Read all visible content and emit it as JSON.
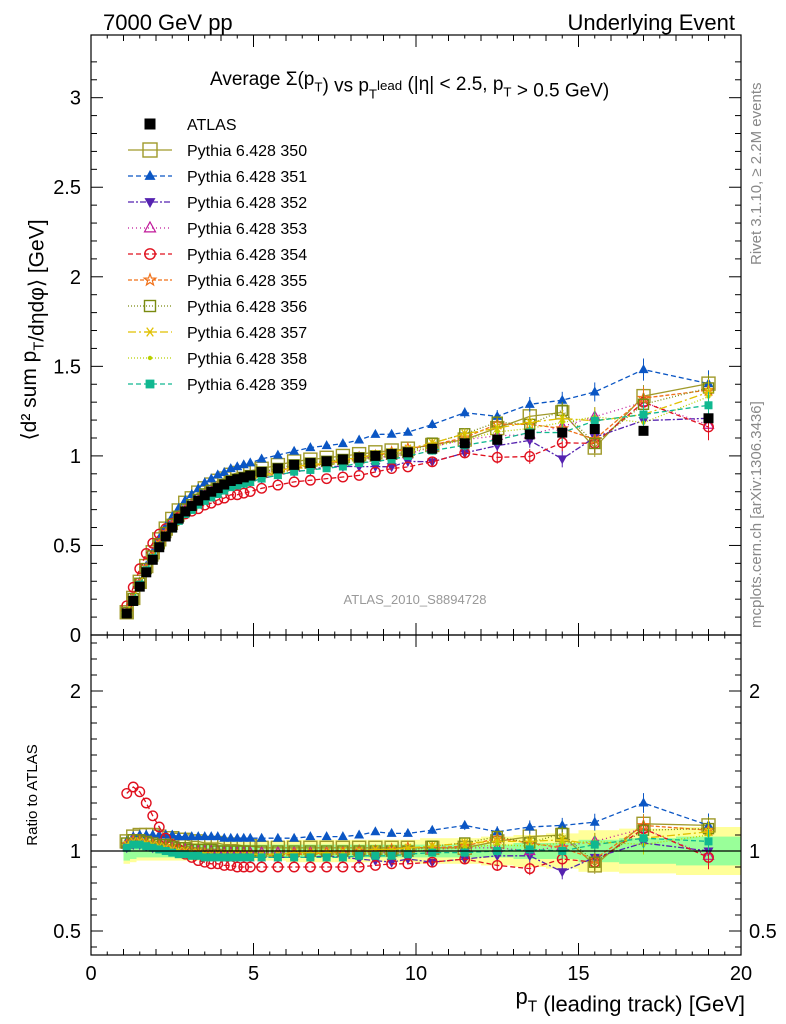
{
  "header": {
    "left": "7000 GeV pp",
    "right": "Underlying Event"
  },
  "side_labels": {
    "rivet": "Rivet 3.1.10, ≥ 2.2M events",
    "mcplots": "mcplots.cern.ch [arXiv:1306.3436]"
  },
  "chart_data": {
    "type": "scatter",
    "title": "Average Σ(p_T) vs p_T^lead (|η| < 2.5, p_T > 0.5 GeV)",
    "watermark": "ATLAS_2010_S8894728",
    "xlabel": "p_T (leading track) [GeV]",
    "ylabel": "⟨d² sum p_T/dηdφ⟩ [GeV]",
    "ratio_ylabel": "Ratio to ATLAS",
    "xlim": [
      0,
      20
    ],
    "ylim": [
      0,
      3.35
    ],
    "ratio_ylim": [
      0.35,
      2.35
    ],
    "x_ticks": [
      0,
      5,
      10,
      15,
      20
    ],
    "x_tick_labels": [
      "0",
      "5",
      "10",
      "15",
      "20"
    ],
    "y_ticks": [
      0,
      0.5,
      1,
      1.5,
      2,
      2.5,
      3
    ],
    "y_tick_labels": [
      "0",
      "0.5",
      "1",
      "1.5",
      "2",
      "2.5",
      "3"
    ],
    "ratio_ticks": [
      0.5,
      1,
      2
    ],
    "ratio_tick_labels": [
      "0.5",
      "1",
      "2"
    ],
    "x": [
      1.1,
      1.3,
      1.5,
      1.7,
      1.9,
      2.1,
      2.3,
      2.5,
      2.7,
      2.9,
      3.1,
      3.3,
      3.5,
      3.7,
      3.9,
      4.1,
      4.3,
      4.5,
      4.7,
      4.9,
      5.25,
      5.75,
      6.25,
      6.75,
      7.25,
      7.75,
      8.25,
      8.75,
      9.25,
      9.75,
      10.5,
      11.5,
      12.5,
      13.5,
      14.5,
      15.5,
      17.0,
      19.0
    ],
    "atlas": {
      "name": "ATLAS",
      "values": [
        0.12,
        0.19,
        0.27,
        0.35,
        0.42,
        0.49,
        0.55,
        0.6,
        0.65,
        0.69,
        0.72,
        0.75,
        0.78,
        0.8,
        0.82,
        0.84,
        0.86,
        0.87,
        0.88,
        0.89,
        0.91,
        0.93,
        0.95,
        0.96,
        0.97,
        0.98,
        0.99,
        1.0,
        1.01,
        1.02,
        1.04,
        1.07,
        1.09,
        1.12,
        1.13,
        1.15,
        1.14,
        1.21
      ],
      "band_stat": [
        0.06,
        0.05,
        0.04,
        0.04,
        0.04,
        0.04,
        0.04,
        0.04,
        0.04,
        0.04,
        0.04,
        0.04,
        0.04,
        0.04,
        0.04,
        0.04,
        0.04,
        0.04,
        0.04,
        0.04,
        0.04,
        0.04,
        0.04,
        0.04,
        0.04,
        0.04,
        0.04,
        0.04,
        0.04,
        0.04,
        0.04,
        0.04,
        0.04,
        0.05,
        0.05,
        0.07,
        0.08,
        0.09
      ],
      "band_total": [
        0.08,
        0.07,
        0.06,
        0.06,
        0.06,
        0.06,
        0.06,
        0.06,
        0.06,
        0.06,
        0.06,
        0.06,
        0.06,
        0.06,
        0.06,
        0.06,
        0.06,
        0.06,
        0.06,
        0.06,
        0.06,
        0.06,
        0.07,
        0.07,
        0.07,
        0.07,
        0.07,
        0.07,
        0.07,
        0.07,
        0.08,
        0.08,
        0.09,
        0.1,
        0.11,
        0.13,
        0.14,
        0.15
      ]
    },
    "series": [
      {
        "name": "Pythia 6.428 350",
        "color": "#a09a2a",
        "marker": "open-square",
        "dash": "",
        "large": true,
        "ratio": [
          1.06,
          1.09,
          1.1,
          1.1,
          1.1,
          1.09,
          1.08,
          1.08,
          1.07,
          1.07,
          1.06,
          1.06,
          1.05,
          1.05,
          1.05,
          1.04,
          1.04,
          1.04,
          1.03,
          1.03,
          1.02,
          1.02,
          1.02,
          1.02,
          1.02,
          1.02,
          1.02,
          1.02,
          1.02,
          1.02,
          1.02,
          1.02,
          1.06,
          1.09,
          1.1,
          0.91,
          1.17,
          1.16
        ]
      },
      {
        "name": "Pythia 6.428 351",
        "color": "#0b56c4",
        "marker": "triangle-up",
        "dash": "5,3",
        "ratio": [
          1.06,
          1.09,
          1.1,
          1.1,
          1.1,
          1.1,
          1.1,
          1.1,
          1.09,
          1.09,
          1.09,
          1.09,
          1.09,
          1.09,
          1.09,
          1.08,
          1.08,
          1.08,
          1.08,
          1.08,
          1.08,
          1.08,
          1.08,
          1.09,
          1.09,
          1.09,
          1.1,
          1.12,
          1.11,
          1.11,
          1.13,
          1.16,
          1.12,
          1.15,
          1.16,
          1.18,
          1.3,
          1.16
        ]
      },
      {
        "name": "Pythia 6.428 352",
        "color": "#5522b0",
        "marker": "triangle-down",
        "dash": "6,2,2,2",
        "ratio": [
          1.02,
          1.04,
          1.04,
          1.03,
          1.02,
          1.02,
          1.01,
          1.0,
          0.99,
          0.99,
          0.98,
          0.98,
          0.98,
          0.97,
          0.97,
          0.97,
          0.97,
          0.96,
          0.96,
          0.96,
          0.96,
          0.96,
          0.96,
          0.96,
          0.97,
          0.96,
          0.95,
          0.94,
          0.93,
          0.95,
          0.93,
          0.95,
          0.97,
          0.97,
          0.87,
          0.96,
          1.05,
          1.0
        ]
      },
      {
        "name": "Pythia 6.428 353",
        "color": "#c0189a",
        "marker": "open-triangle",
        "dash": "1,3",
        "ratio": [
          1.04,
          1.07,
          1.07,
          1.06,
          1.05,
          1.04,
          1.03,
          1.02,
          1.02,
          1.01,
          1.01,
          1.0,
          1.0,
          1.0,
          1.0,
          0.99,
          0.99,
          0.99,
          0.99,
          0.99,
          0.99,
          0.99,
          0.99,
          0.99,
          0.99,
          0.99,
          1.0,
          0.99,
          0.99,
          0.99,
          1.01,
          1.02,
          1.02,
          1.0,
          1.03,
          1.06,
          1.14,
          0.97
        ]
      },
      {
        "name": "Pythia 6.428 354",
        "color": "#e0101e",
        "marker": "open-circle",
        "dash": "5,3",
        "ratio": [
          1.36,
          1.4,
          1.37,
          1.3,
          1.22,
          1.15,
          1.08,
          1.04,
          1.01,
          0.98,
          0.96,
          0.94,
          0.93,
          0.92,
          0.92,
          0.91,
          0.91,
          0.9,
          0.9,
          0.9,
          0.9,
          0.9,
          0.9,
          0.9,
          0.9,
          0.9,
          0.9,
          0.91,
          0.92,
          0.92,
          0.93,
          0.95,
          0.91,
          0.89,
          0.95,
          0.93,
          1.14,
          0.96
        ]
      },
      {
        "name": "Pythia 6.428 355",
        "color": "#f07018",
        "marker": "open-star",
        "dash": "4,2",
        "ratio": [
          1.04,
          1.06,
          1.06,
          1.05,
          1.04,
          1.03,
          1.02,
          1.01,
          1.0,
          0.99,
          0.99,
          0.98,
          0.98,
          0.97,
          0.97,
          0.97,
          0.97,
          0.97,
          0.97,
          0.97,
          0.97,
          0.97,
          0.98,
          0.98,
          0.99,
          0.99,
          1.0,
          1.0,
          1.01,
          1.02,
          1.02,
          1.03,
          1.08,
          1.05,
          1.02,
          0.95,
          1.16,
          1.13
        ]
      },
      {
        "name": "Pythia 6.428 356",
        "color": "#7a8a10",
        "marker": "open-square",
        "dash": "1,2",
        "ratio": [
          1.05,
          1.07,
          1.07,
          1.06,
          1.05,
          1.04,
          1.04,
          1.03,
          1.02,
          1.02,
          1.01,
          1.01,
          1.01,
          1.01,
          1.0,
          1.0,
          1.0,
          1.0,
          1.0,
          1.0,
          1.0,
          1.0,
          1.0,
          1.0,
          1.0,
          1.0,
          1.0,
          1.0,
          1.0,
          1.0,
          1.03,
          1.05,
          1.09,
          1.05,
          1.11,
          0.93,
          1.13,
          1.14
        ]
      },
      {
        "name": "Pythia 6.428 357",
        "color": "#e0c000",
        "marker": "tri-star",
        "dash": "8,3,2,3",
        "ratio": [
          1.04,
          1.06,
          1.06,
          1.05,
          1.04,
          1.03,
          1.02,
          1.01,
          1.0,
          1.0,
          0.99,
          0.99,
          0.98,
          0.98,
          0.98,
          0.98,
          0.98,
          0.98,
          0.98,
          0.98,
          0.98,
          0.98,
          0.99,
          0.99,
          0.99,
          1.0,
          1.0,
          1.01,
          1.01,
          1.02,
          1.03,
          1.05,
          1.06,
          1.06,
          1.07,
          1.04,
          1.08,
          1.12
        ]
      },
      {
        "name": "Pythia 6.428 358",
        "color": "#b8d000",
        "marker": "dot",
        "dash": "1,2",
        "ratio": [
          1.03,
          1.05,
          1.05,
          1.04,
          1.03,
          1.02,
          1.01,
          1.0,
          1.0,
          0.99,
          0.98,
          0.98,
          0.98,
          0.97,
          0.97,
          0.97,
          0.97,
          0.97,
          0.97,
          0.97,
          0.97,
          0.97,
          0.97,
          0.98,
          0.98,
          0.98,
          0.99,
          0.99,
          1.0,
          1.0,
          1.01,
          1.02,
          1.04,
          1.03,
          1.05,
          1.06,
          1.04,
          1.1
        ]
      },
      {
        "name": "Pythia 6.428 359",
        "color": "#10b890",
        "marker": "filled-square",
        "dash": "5,3",
        "ratio": [
          1.02,
          1.04,
          1.04,
          1.03,
          1.02,
          1.01,
          1.0,
          0.99,
          0.98,
          0.98,
          0.97,
          0.97,
          0.96,
          0.96,
          0.96,
          0.96,
          0.96,
          0.96,
          0.96,
          0.96,
          0.96,
          0.96,
          0.96,
          0.96,
          0.96,
          0.96,
          0.97,
          0.97,
          0.97,
          0.98,
          0.99,
          0.99,
          1.0,
          1.01,
          1.0,
          1.04,
          1.08,
          1.06
        ]
      }
    ]
  }
}
